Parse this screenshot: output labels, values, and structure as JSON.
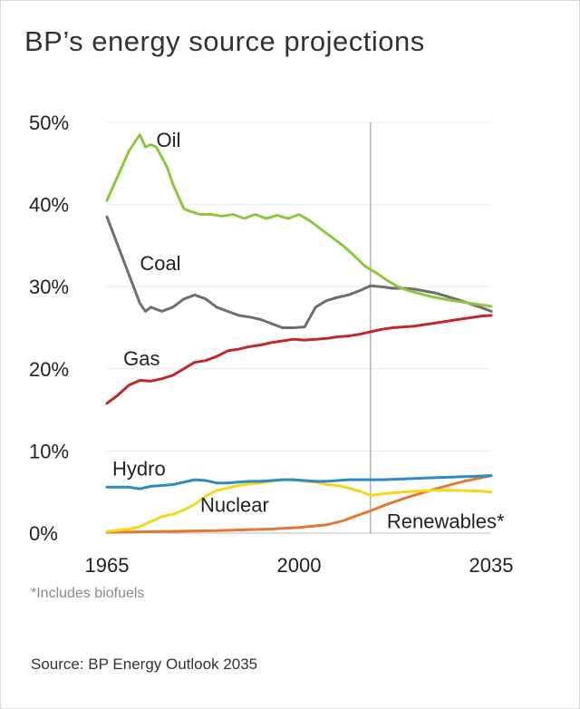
{
  "title": "BP’s energy source projections",
  "footnote": "*Includes biofuels",
  "source": "Source: BP Energy Outlook 2035",
  "chart_data": {
    "type": "line",
    "title": "BP’s energy source projections",
    "xlabel": "",
    "ylabel": "",
    "xlim": [
      1965,
      2035
    ],
    "ylim": [
      0,
      50
    ],
    "x_ticks": [
      1965,
      2000,
      2035
    ],
    "x_tick_labels": [
      "1965",
      "2000",
      "2035"
    ],
    "y_ticks": [
      0,
      10,
      20,
      30,
      40,
      50
    ],
    "y_tick_labels": [
      "0%",
      "10%",
      "20%",
      "30%",
      "40%",
      "50%"
    ],
    "projection_start_year": 2013,
    "series": [
      {
        "name": "Oil",
        "label": "Oil",
        "color": "#8dc63f",
        "x": [
          1965,
          1967,
          1969,
          1971,
          1972,
          1973,
          1974,
          1976,
          1977,
          1979,
          1980,
          1982,
          1984,
          1986,
          1988,
          1990,
          1992,
          1994,
          1996,
          1998,
          2000,
          2002,
          2004,
          2006,
          2008,
          2010,
          2012,
          2014,
          2016,
          2018,
          2020,
          2024,
          2028,
          2032,
          2035
        ],
        "y": [
          40.5,
          43.5,
          46.5,
          48.5,
          47.0,
          47.3,
          47.0,
          44.5,
          42.5,
          39.5,
          39.2,
          38.8,
          38.8,
          38.6,
          38.8,
          38.3,
          38.8,
          38.3,
          38.7,
          38.3,
          38.8,
          38.0,
          37.0,
          36.0,
          35.0,
          33.8,
          32.5,
          31.7,
          30.8,
          30.0,
          29.5,
          28.8,
          28.3,
          27.9,
          27.6
        ]
      },
      {
        "name": "Coal",
        "label": "Coal",
        "color": "#6d6e70",
        "x": [
          1965,
          1967,
          1969,
          1971,
          1972,
          1973,
          1975,
          1977,
          1979,
          1981,
          1983,
          1985,
          1987,
          1989,
          1991,
          1993,
          1995,
          1997,
          1999,
          2001,
          2003,
          2005,
          2007,
          2009,
          2011,
          2013,
          2015,
          2017,
          2019,
          2021,
          2025,
          2029,
          2033,
          2035
        ],
        "y": [
          38.5,
          35.0,
          31.5,
          28.0,
          27.0,
          27.5,
          27.0,
          27.5,
          28.5,
          29.0,
          28.5,
          27.5,
          27.0,
          26.5,
          26.3,
          26.0,
          25.5,
          25.0,
          25.0,
          25.1,
          27.5,
          28.3,
          28.7,
          29.0,
          29.5,
          30.1,
          30.0,
          29.8,
          29.8,
          29.7,
          29.2,
          28.4,
          27.5,
          27.0
        ]
      },
      {
        "name": "Gas",
        "label": "Gas",
        "color": "#c1272d",
        "x": [
          1965,
          1967,
          1969,
          1971,
          1973,
          1975,
          1977,
          1979,
          1981,
          1983,
          1985,
          1987,
          1989,
          1991,
          1993,
          1995,
          1997,
          1999,
          2001,
          2003,
          2005,
          2007,
          2009,
          2011,
          2013,
          2015,
          2017,
          2019,
          2021,
          2025,
          2029,
          2033,
          2035
        ],
        "y": [
          15.8,
          16.8,
          18.0,
          18.6,
          18.5,
          18.8,
          19.2,
          20.0,
          20.8,
          21.0,
          21.5,
          22.2,
          22.4,
          22.7,
          22.9,
          23.2,
          23.4,
          23.6,
          23.5,
          23.6,
          23.7,
          23.9,
          24.0,
          24.2,
          24.5,
          24.8,
          25.0,
          25.1,
          25.2,
          25.6,
          26.0,
          26.4,
          26.5
        ]
      },
      {
        "name": "Hydro",
        "label": "Hydro",
        "color": "#2b8cc4",
        "x": [
          1965,
          1969,
          1971,
          1973,
          1975,
          1977,
          1979,
          1981,
          1983,
          1985,
          1987,
          1989,
          1991,
          1993,
          1995,
          1997,
          1999,
          2001,
          2003,
          2005,
          2007,
          2009,
          2011,
          2013,
          2015,
          2019,
          2023,
          2027,
          2031,
          2035
        ],
        "y": [
          5.6,
          5.6,
          5.4,
          5.7,
          5.8,
          5.9,
          6.2,
          6.5,
          6.4,
          6.1,
          6.1,
          6.2,
          6.3,
          6.3,
          6.4,
          6.5,
          6.5,
          6.4,
          6.3,
          6.3,
          6.4,
          6.5,
          6.5,
          6.5,
          6.5,
          6.6,
          6.7,
          6.8,
          6.9,
          7.0
        ]
      },
      {
        "name": "Nuclear",
        "label": "Nuclear",
        "color": "#f4d81a",
        "x": [
          1965,
          1969,
          1971,
          1973,
          1975,
          1977,
          1979,
          1981,
          1983,
          1985,
          1987,
          1989,
          1991,
          1993,
          1995,
          1997,
          1999,
          2001,
          2003,
          2005,
          2007,
          2009,
          2011,
          2013,
          2017,
          2021,
          2025,
          2029,
          2033,
          2035
        ],
        "y": [
          0.2,
          0.5,
          0.8,
          1.4,
          2.0,
          2.3,
          2.8,
          3.5,
          4.5,
          5.2,
          5.5,
          5.8,
          6.0,
          6.1,
          6.3,
          6.5,
          6.5,
          6.3,
          6.2,
          5.9,
          5.8,
          5.5,
          5.1,
          4.6,
          4.9,
          5.1,
          5.2,
          5.2,
          5.1,
          5.0
        ]
      },
      {
        "name": "Renewables",
        "label": "Renewables*",
        "color": "#e07a2e",
        "x": [
          1965,
          1975,
          1985,
          1990,
          1995,
          2000,
          2005,
          2008,
          2010,
          2013,
          2016,
          2020,
          2025,
          2030,
          2035
        ],
        "y": [
          0.1,
          0.2,
          0.3,
          0.4,
          0.5,
          0.7,
          1.0,
          1.5,
          2.0,
          2.7,
          3.5,
          4.4,
          5.4,
          6.3,
          7.0
        ]
      }
    ]
  }
}
